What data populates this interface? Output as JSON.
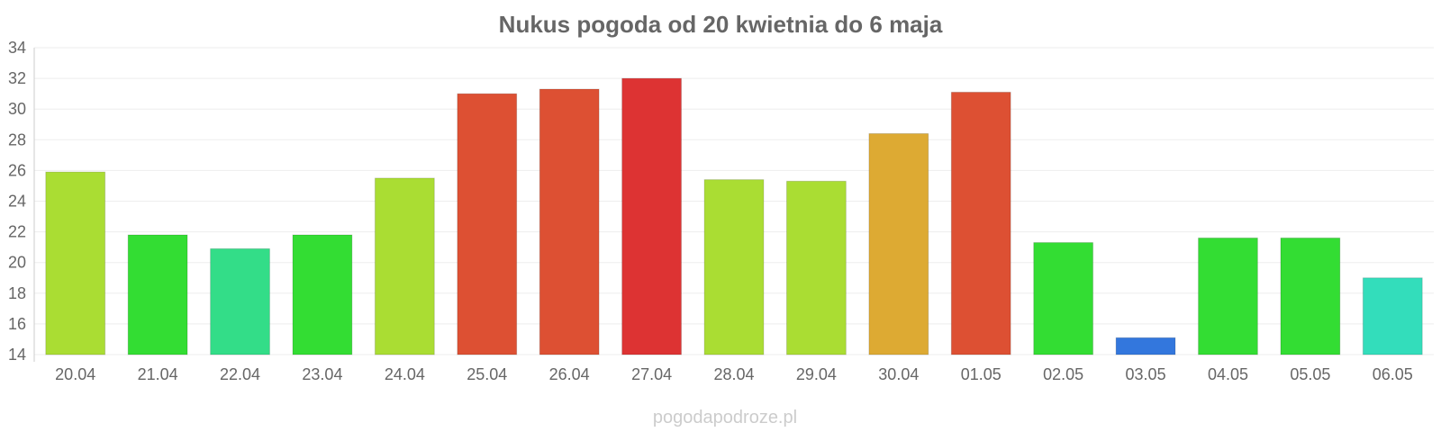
{
  "chart_data": {
    "type": "bar",
    "title": "Nukus pogoda od 20 kwietnia do 6 maja",
    "xlabel": "",
    "ylabel": "",
    "ylim": [
      14,
      34
    ],
    "yticks": [
      14,
      16,
      18,
      20,
      22,
      24,
      26,
      28,
      30,
      32,
      34
    ],
    "grid": true,
    "categories": [
      "20.04",
      "21.04",
      "22.04",
      "23.04",
      "24.04",
      "25.04",
      "26.04",
      "27.04",
      "28.04",
      "29.04",
      "30.04",
      "01.05",
      "02.05",
      "03.05",
      "04.05",
      "05.05",
      "06.05"
    ],
    "values": [
      25.9,
      21.8,
      20.9,
      21.8,
      25.5,
      31.0,
      31.3,
      32.0,
      25.4,
      25.3,
      28.4,
      31.1,
      21.3,
      15.1,
      21.6,
      21.6,
      19.0
    ],
    "colors": [
      "#aadd33",
      "#33dd33",
      "#33dd88",
      "#33dd33",
      "#aadd33",
      "#dd5033",
      "#dd5033",
      "#dd3333",
      "#aadd33",
      "#aadd33",
      "#ddaa33",
      "#dd5033",
      "#33dd33",
      "#3377dd",
      "#33dd33",
      "#33dd33",
      "#33ddbb"
    ]
  },
  "watermark": "pogodapodroze.pl"
}
